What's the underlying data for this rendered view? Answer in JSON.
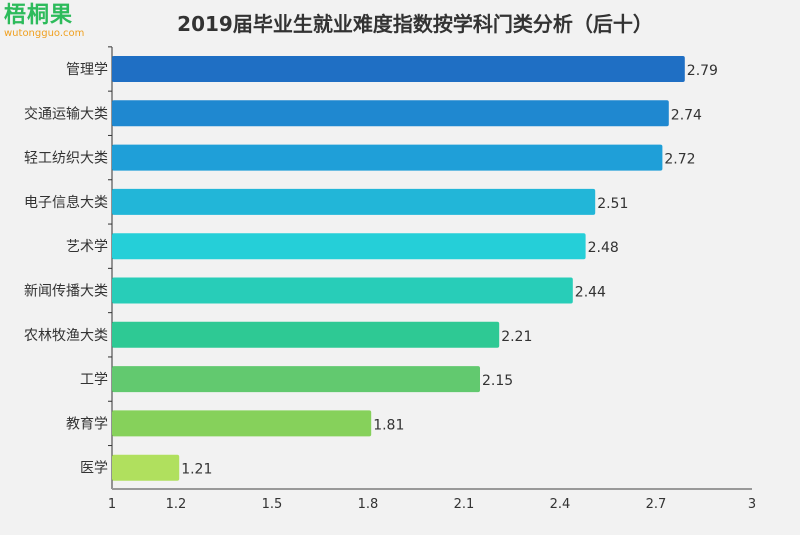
{
  "logo": {
    "name": "梧桐果",
    "domain": "wutongguo.com"
  },
  "chart_data": {
    "type": "bar",
    "orientation": "horizontal",
    "title": "2019届毕业生就业难度指数按学科门类分析（后十）",
    "categories": [
      "管理学",
      "交通运输大类",
      "轻工纺织大类",
      "电子信息大类",
      "艺术学",
      "新闻传播大类",
      "农林牧渔大类",
      "工学",
      "教育学",
      "医学"
    ],
    "values": [
      2.79,
      2.74,
      2.72,
      2.51,
      2.48,
      2.44,
      2.21,
      2.15,
      1.81,
      1.21
    ],
    "colors": [
      "#1f6fc4",
      "#1f88d0",
      "#1f9fd8",
      "#22b6d8",
      "#25cfd8",
      "#28cdb8",
      "#2ec994",
      "#62c96f",
      "#86d15b",
      "#b0e05e"
    ],
    "xlim": [
      1,
      3
    ],
    "xticks": [
      "1",
      "1.2",
      "1.5",
      "1.8",
      "2.1",
      "2.4",
      "2.7",
      "3"
    ],
    "grid": false
  }
}
